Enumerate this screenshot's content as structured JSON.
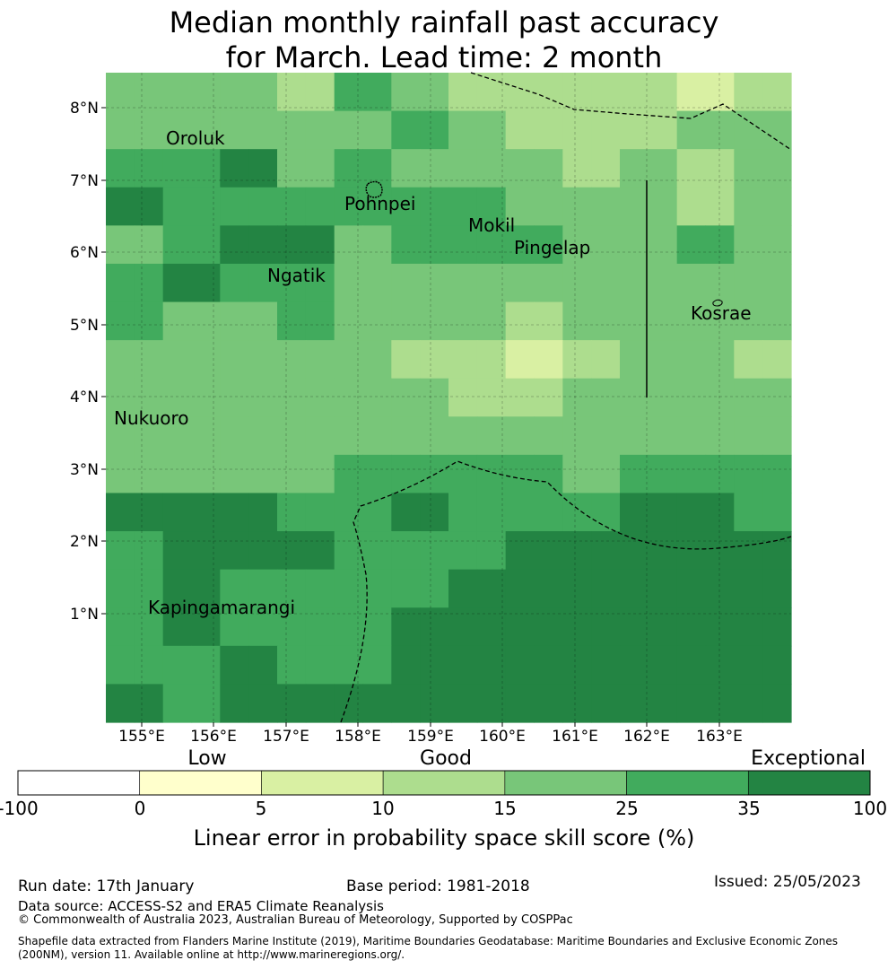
{
  "title_line1": "Median monthly rainfall past accuracy",
  "title_line2": "for March. Lead time: 2 month",
  "lon_labels": [
    "155°E",
    "156°E",
    "157°E",
    "158°E",
    "159°E",
    "160°E",
    "161°E",
    "162°E",
    "163°E"
  ],
  "lat_labels": [
    "8°N",
    "7°N",
    "6°N",
    "5°N",
    "4°N",
    "3°N",
    "2°N",
    "1°N"
  ],
  "places": [
    "Oroluk",
    "Pohnpei",
    "Mokil",
    "Pingelap",
    "Ngatik",
    "Kosrae",
    "Nukuoro",
    "Kapingamarangi"
  ],
  "colorbar": {
    "category_labels": [
      "Low",
      "Good",
      "Exceptional"
    ],
    "tick_labels": [
      "-100",
      "0",
      "5",
      "10",
      "15",
      "25",
      "35",
      "100"
    ],
    "colors": [
      "#ffffff",
      "#ffffcc",
      "#d9f0a3",
      "#addd8e",
      "#78c679",
      "#41ab5d",
      "#238443"
    ],
    "label": "Linear error in probability space skill score (%)"
  },
  "footer": {
    "run_date": "Run date: 17th January",
    "base_period": "Base period: 1981-2018",
    "issued": "Issued: 25/05/2023",
    "data_source": "Data source: ACCESS-S2 and ERA5 Climate Reanalysis",
    "copyright": "© Commonwealth of Australia 2023, Australian Bureau of Meteorology, Supported by COSPPac",
    "shapefile_line1": "Shapefile data extracted from Flanders Marine Institute (2019), Maritime Boundaries Geodatabase: Maritime Boundaries and Exclusive Economic Zones",
    "shapefile_line2": "(200NM), version 11. Available online at http://www.marineregions.org/."
  },
  "grid_levels": [
    [
      4,
      4,
      4,
      4,
      4,
      4,
      3,
      3,
      5,
      5,
      4,
      4,
      3,
      3,
      3,
      3,
      3,
      3,
      3,
      3,
      2,
      2,
      3,
      3
    ],
    [
      4,
      4,
      4,
      4,
      4,
      4,
      4,
      4,
      4,
      4,
      5,
      5,
      4,
      4,
      3,
      3,
      3,
      3,
      3,
      3,
      4,
      4,
      4,
      4
    ],
    [
      5,
      5,
      5,
      5,
      6,
      6,
      4,
      4,
      5,
      5,
      4,
      4,
      4,
      4,
      4,
      4,
      3,
      3,
      4,
      4,
      3,
      3,
      4,
      4
    ],
    [
      6,
      6,
      5,
      5,
      5,
      5,
      5,
      5,
      5,
      5,
      5,
      5,
      5,
      5,
      4,
      4,
      4,
      4,
      4,
      4,
      3,
      3,
      4,
      4
    ],
    [
      4,
      4,
      5,
      5,
      6,
      6,
      6,
      6,
      4,
      4,
      5,
      5,
      5,
      5,
      5,
      5,
      4,
      4,
      4,
      4,
      5,
      5,
      4,
      4
    ],
    [
      5,
      5,
      6,
      6,
      5,
      5,
      5,
      5,
      4,
      4,
      4,
      4,
      4,
      4,
      4,
      4,
      4,
      4,
      4,
      4,
      4,
      4,
      4,
      4
    ],
    [
      5,
      5,
      4,
      4,
      4,
      4,
      5,
      5,
      4,
      4,
      4,
      4,
      4,
      4,
      3,
      3,
      4,
      4,
      4,
      4,
      4,
      4,
      4,
      4
    ],
    [
      4,
      4,
      4,
      4,
      4,
      4,
      4,
      4,
      4,
      4,
      3,
      3,
      3,
      3,
      2,
      2,
      3,
      3,
      4,
      4,
      4,
      4,
      3,
      3
    ],
    [
      4,
      4,
      4,
      4,
      4,
      4,
      4,
      4,
      4,
      4,
      4,
      4,
      3,
      3,
      3,
      3,
      4,
      4,
      4,
      4,
      4,
      4,
      4,
      4
    ],
    [
      4,
      4,
      4,
      4,
      4,
      4,
      4,
      4,
      4,
      4,
      4,
      4,
      4,
      4,
      4,
      4,
      4,
      4,
      4,
      4,
      4,
      4,
      4,
      4
    ],
    [
      4,
      4,
      4,
      4,
      4,
      4,
      4,
      4,
      5,
      5,
      5,
      5,
      5,
      5,
      5,
      5,
      4,
      4,
      5,
      5,
      5,
      5,
      5,
      5
    ],
    [
      6,
      6,
      6,
      6,
      6,
      6,
      5,
      5,
      5,
      5,
      6,
      6,
      5,
      5,
      5,
      5,
      5,
      5,
      6,
      6,
      6,
      6,
      5,
      5
    ],
    [
      5,
      5,
      6,
      6,
      6,
      6,
      6,
      6,
      5,
      5,
      5,
      5,
      5,
      5,
      6,
      6,
      6,
      6,
      6,
      6,
      6,
      6,
      6,
      6
    ],
    [
      5,
      5,
      6,
      6,
      5,
      5,
      5,
      5,
      5,
      5,
      5,
      5,
      6,
      6,
      6,
      6,
      6,
      6,
      6,
      6,
      6,
      6,
      6,
      6
    ],
    [
      5,
      5,
      6,
      6,
      5,
      5,
      5,
      5,
      5,
      5,
      6,
      6,
      6,
      6,
      6,
      6,
      6,
      6,
      6,
      6,
      6,
      6,
      6,
      6
    ],
    [
      5,
      5,
      5,
      5,
      6,
      6,
      5,
      5,
      5,
      5,
      6,
      6,
      6,
      6,
      6,
      6,
      6,
      6,
      6,
      6,
      6,
      6,
      6,
      6
    ],
    [
      6,
      6,
      5,
      5,
      6,
      6,
      6,
      6,
      6,
      6,
      6,
      6,
      6,
      6,
      6,
      6,
      6,
      6,
      6,
      6,
      6,
      6,
      6,
      6
    ]
  ]
}
